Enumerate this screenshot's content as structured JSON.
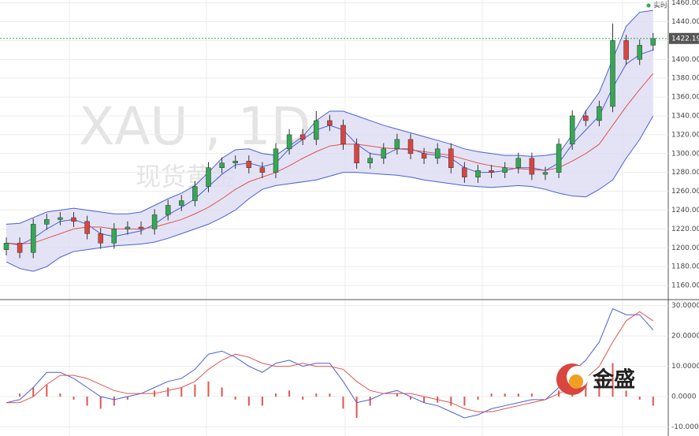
{
  "chart_data": [
    {
      "type": "candlestick",
      "title": "XAU , 1D",
      "subtitle": "现货黄金",
      "status": "实时",
      "up_color": "#34a853",
      "down_color": "#d9453f",
      "open": [
        1198,
        1205,
        1195,
        1225,
        1230,
        1232,
        1228,
        1215,
        1205,
        1220,
        1222,
        1220,
        1235,
        1245,
        1250,
        1265,
        1285,
        1290,
        1292,
        1285,
        1280,
        1305,
        1320,
        1315,
        1335,
        1330,
        1310,
        1290,
        1295,
        1305,
        1315,
        1300,
        1295,
        1305,
        1285,
        1275,
        1282,
        1280,
        1285,
        1295,
        1278,
        1280,
        1310,
        1340,
        1335,
        1350,
        1420,
        1400,
        1415
      ],
      "high": [
        1211,
        1211,
        1231,
        1236,
        1238,
        1238,
        1234,
        1221,
        1226,
        1228,
        1228,
        1241,
        1251,
        1256,
        1271,
        1291,
        1296,
        1298,
        1298,
        1291,
        1311,
        1326,
        1326,
        1345,
        1341,
        1336,
        1316,
        1301,
        1311,
        1321,
        1321,
        1306,
        1311,
        1311,
        1291,
        1288,
        1288,
        1291,
        1301,
        1301,
        1286,
        1316,
        1346,
        1346,
        1356,
        1438,
        1426,
        1421,
        1428
      ],
      "low": [
        1192,
        1189,
        1189,
        1219,
        1224,
        1222,
        1209,
        1199,
        1199,
        1214,
        1214,
        1214,
        1229,
        1239,
        1244,
        1259,
        1279,
        1284,
        1279,
        1274,
        1274,
        1299,
        1309,
        1309,
        1324,
        1304,
        1284,
        1284,
        1289,
        1299,
        1294,
        1289,
        1289,
        1279,
        1269,
        1269,
        1274,
        1274,
        1279,
        1272,
        1272,
        1274,
        1304,
        1329,
        1329,
        1344,
        1394,
        1394,
        1409
      ],
      "close": [
        1205,
        1195,
        1225,
        1230,
        1232,
        1228,
        1215,
        1205,
        1220,
        1222,
        1220,
        1235,
        1245,
        1250,
        1265,
        1285,
        1290,
        1292,
        1285,
        1280,
        1305,
        1320,
        1315,
        1335,
        1330,
        1310,
        1290,
        1295,
        1305,
        1315,
        1300,
        1295,
        1305,
        1285,
        1275,
        1282,
        1280,
        1285,
        1295,
        1278,
        1280,
        1310,
        1340,
        1335,
        1350,
        1420,
        1400,
        1415,
        1422.19
      ],
      "series": [
        {
          "name": "upper",
          "color": "#4a5fd6",
          "values": [
            1225,
            1226,
            1232,
            1238,
            1240,
            1242,
            1240,
            1238,
            1236,
            1236,
            1238,
            1245,
            1252,
            1258,
            1266,
            1280,
            1295,
            1304,
            1305,
            1300,
            1298,
            1308,
            1318,
            1335,
            1345,
            1345,
            1340,
            1335,
            1330,
            1326,
            1322,
            1318,
            1314,
            1310,
            1305,
            1302,
            1300,
            1298,
            1298,
            1297,
            1298,
            1300,
            1320,
            1345,
            1365,
            1400,
            1435,
            1450,
            1452
          ]
        },
        {
          "name": "lower",
          "color": "#4a5fd6",
          "values": [
            1185,
            1178,
            1175,
            1180,
            1190,
            1196,
            1198,
            1200,
            1202,
            1203,
            1204,
            1206,
            1210,
            1215,
            1220,
            1225,
            1232,
            1240,
            1252,
            1262,
            1266,
            1268,
            1270,
            1272,
            1276,
            1280,
            1280,
            1279,
            1278,
            1277,
            1275,
            1272,
            1270,
            1268,
            1266,
            1265,
            1264,
            1265,
            1266,
            1265,
            1262,
            1258,
            1255,
            1254,
            1262,
            1272,
            1295,
            1315,
            1340
          ]
        },
        {
          "name": "basis",
          "color": "#4a5fd6",
          "values": [
            1205,
            1203,
            1210,
            1220,
            1228,
            1230,
            1225,
            1215,
            1212,
            1215,
            1218,
            1225,
            1235,
            1243,
            1252,
            1265,
            1278,
            1288,
            1290,
            1286,
            1290,
            1305,
            1315,
            1325,
            1330,
            1325,
            1310,
            1300,
            1298,
            1305,
            1305,
            1300,
            1298,
            1295,
            1285,
            1280,
            1280,
            1282,
            1285,
            1285,
            1282,
            1290,
            1310,
            1325,
            1340,
            1370,
            1395,
            1405,
            1410
          ]
        },
        {
          "name": "ma",
          "color": "#e0554f",
          "values": [
            1205,
            1204,
            1205,
            1210,
            1215,
            1220,
            1222,
            1222,
            1220,
            1220,
            1220,
            1222,
            1226,
            1230,
            1236,
            1243,
            1252,
            1262,
            1270,
            1275,
            1280,
            1287,
            1295,
            1302,
            1308,
            1310,
            1310,
            1308,
            1306,
            1305,
            1304,
            1302,
            1300,
            1298,
            1294,
            1290,
            1287,
            1285,
            1284,
            1283,
            1282,
            1285,
            1292,
            1300,
            1310,
            1330,
            1350,
            1368,
            1385
          ]
        }
      ],
      "last_price": {
        "value": 1422.19,
        "label": "1422.19"
      },
      "ylim": [
        1145,
        1463
      ],
      "yticks": [
        {
          "value": 1160,
          "label": "1160.00"
        },
        {
          "value": 1180,
          "label": "1180.00"
        },
        {
          "value": 1200,
          "label": "1200.00"
        },
        {
          "value": 1220,
          "label": "1220.00"
        },
        {
          "value": 1240,
          "label": "1240.00"
        },
        {
          "value": 1260,
          "label": "1260.00"
        },
        {
          "value": 1280,
          "label": "1280.00"
        },
        {
          "value": 1300,
          "label": "1300.00"
        },
        {
          "value": 1320,
          "label": "1320.00"
        },
        {
          "value": 1340,
          "label": "1340.00"
        },
        {
          "value": 1360,
          "label": "1360.00"
        },
        {
          "value": 1380,
          "label": "1380.00"
        },
        {
          "value": 1400,
          "label": "1400.00"
        },
        {
          "value": 1420,
          "label": "1420.00"
        },
        {
          "value": 1440,
          "label": "1440.00"
        },
        {
          "value": 1460,
          "label": "1460.00"
        }
      ],
      "grid": true
    },
    {
      "type": "macd",
      "series": [
        {
          "name": "macd",
          "color": "#4a5fd6",
          "values": [
            -2,
            -1,
            3,
            8,
            8,
            6,
            3,
            0,
            -1,
            0,
            1,
            3,
            5,
            6,
            9,
            14,
            15,
            13,
            10,
            8,
            11,
            12,
            10,
            11,
            11,
            5,
            -2,
            -1,
            1,
            2,
            0,
            -2,
            -3,
            -5,
            -7,
            -6,
            -4,
            -3,
            -2,
            -1,
            -1,
            3,
            8,
            12,
            18,
            29,
            27,
            27,
            22
          ]
        },
        {
          "name": "signal",
          "color": "#e0554f",
          "values": [
            -2,
            -2,
            0,
            4,
            7,
            7,
            6,
            4,
            2,
            1,
            1,
            1,
            2,
            3,
            5,
            9,
            12,
            14,
            13,
            11,
            10,
            10,
            11,
            10,
            10,
            9,
            5,
            2,
            1,
            1,
            1,
            0,
            -1,
            -2,
            -4,
            -5,
            -5,
            -4,
            -3,
            -2,
            -1,
            1,
            3,
            6,
            10,
            18,
            25,
            28,
            25
          ]
        }
      ],
      "histogram": {
        "color": "#e0554f",
        "values": [
          0,
          1,
          3,
          4,
          1,
          -1,
          -3,
          -4,
          -3,
          -1,
          0,
          2,
          3,
          3,
          4,
          5,
          3,
          -1,
          -3,
          -3,
          1,
          2,
          -1,
          1,
          1,
          -4,
          -7,
          -3,
          0,
          1,
          -1,
          -2,
          -2,
          -3,
          -3,
          -1,
          1,
          1,
          1,
          1,
          0,
          2,
          5,
          6,
          8,
          11,
          2,
          -1,
          -3
        ]
      },
      "ylim": [
        -13,
        32
      ],
      "yticks": [
        {
          "value": -10,
          "label": "-10.0000"
        },
        {
          "value": 0,
          "label": "0.0000"
        },
        {
          "value": 10,
          "label": "10.0000"
        },
        {
          "value": 20,
          "label": "20.0000"
        },
        {
          "value": 30,
          "label": "30.0000"
        }
      ],
      "grid": true
    }
  ],
  "logo": "金盛"
}
